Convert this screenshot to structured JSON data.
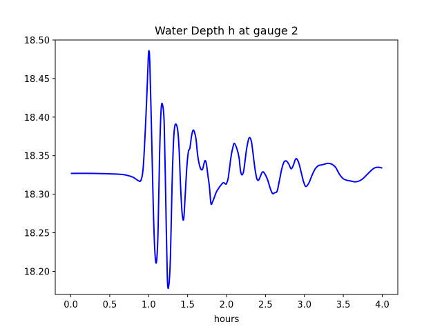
{
  "chart_data": {
    "type": "line",
    "title": "Water Depth h at gauge 2",
    "xlabel": "hours",
    "ylabel": "",
    "xlim": [
      -0.2,
      4.2
    ],
    "ylim": [
      18.17,
      18.5
    ],
    "xticks": [
      0.0,
      0.5,
      1.0,
      1.5,
      2.0,
      2.5,
      3.0,
      3.5,
      4.0
    ],
    "xtick_labels": [
      "0.0",
      "0.5",
      "1.0",
      "1.5",
      "2.0",
      "2.5",
      "3.0",
      "3.5",
      "4.0"
    ],
    "yticks": [
      18.2,
      18.25,
      18.3,
      18.35,
      18.4,
      18.45,
      18.5
    ],
    "ytick_labels": [
      "18.20",
      "18.25",
      "18.30",
      "18.35",
      "18.40",
      "18.45",
      "18.50"
    ],
    "grid": false,
    "series": [
      {
        "color": "#0000ff",
        "x": [
          0.0,
          0.3,
          0.6,
          0.7,
          0.8,
          0.86,
          0.9,
          0.93,
          0.96,
          0.985,
          1.0,
          1.015,
          1.035,
          1.06,
          1.08,
          1.1,
          1.12,
          1.14,
          1.16,
          1.18,
          1.2,
          1.22,
          1.24,
          1.26,
          1.28,
          1.3,
          1.32,
          1.34,
          1.37,
          1.39,
          1.41,
          1.43,
          1.45,
          1.47,
          1.49,
          1.51,
          1.53,
          1.55,
          1.57,
          1.59,
          1.61,
          1.63,
          1.66,
          1.69,
          1.72,
          1.74,
          1.76,
          1.78,
          1.8,
          1.82,
          1.84,
          1.87,
          1.9,
          1.93,
          1.96,
          1.99,
          2.0,
          2.02,
          2.04,
          2.06,
          2.08,
          2.1,
          2.13,
          2.16,
          2.18,
          2.2,
          2.22,
          2.24,
          2.26,
          2.29,
          2.32,
          2.35,
          2.37,
          2.39,
          2.41,
          2.43,
          2.45,
          2.47,
          2.5,
          2.53,
          2.56,
          2.59,
          2.62,
          2.65,
          2.68,
          2.71,
          2.74,
          2.77,
          2.8,
          2.83,
          2.86,
          2.88,
          2.9,
          2.93,
          2.96,
          2.99,
          3.02,
          3.06,
          3.1,
          3.14,
          3.18,
          3.22,
          3.26,
          3.3,
          3.35,
          3.4,
          3.45,
          3.5,
          3.55,
          3.6,
          3.65,
          3.7,
          3.75,
          3.8,
          3.85,
          3.9,
          3.95,
          4.0
        ],
        "y": [
          18.327,
          18.327,
          18.326,
          18.325,
          18.322,
          18.318,
          18.318,
          18.335,
          18.39,
          18.45,
          18.485,
          18.47,
          18.39,
          18.28,
          18.225,
          18.212,
          18.25,
          18.35,
          18.41,
          18.415,
          18.39,
          18.29,
          18.19,
          18.183,
          18.22,
          18.31,
          18.37,
          18.39,
          18.385,
          18.36,
          18.31,
          18.275,
          18.268,
          18.3,
          18.335,
          18.355,
          18.36,
          18.375,
          18.383,
          18.38,
          18.37,
          18.35,
          18.335,
          18.332,
          18.343,
          18.34,
          18.325,
          18.31,
          18.288,
          18.29,
          18.295,
          18.303,
          18.308,
          18.312,
          18.315,
          18.313,
          18.314,
          18.32,
          18.335,
          18.35,
          18.36,
          18.366,
          18.36,
          18.348,
          18.33,
          18.325,
          18.33,
          18.345,
          18.36,
          18.373,
          18.368,
          18.345,
          18.33,
          18.32,
          18.318,
          18.322,
          18.327,
          18.329,
          18.325,
          18.318,
          18.308,
          18.301,
          18.302,
          18.304,
          18.318,
          18.333,
          18.342,
          18.343,
          18.339,
          18.333,
          18.338,
          18.344,
          18.346,
          18.34,
          18.328,
          18.316,
          18.31,
          18.315,
          18.325,
          18.333,
          18.337,
          18.338,
          18.339,
          18.34,
          18.339,
          18.335,
          18.326,
          18.32,
          18.318,
          18.317,
          18.316,
          18.317,
          18.32,
          18.325,
          18.33,
          18.334,
          18.335,
          18.334
        ]
      }
    ]
  }
}
